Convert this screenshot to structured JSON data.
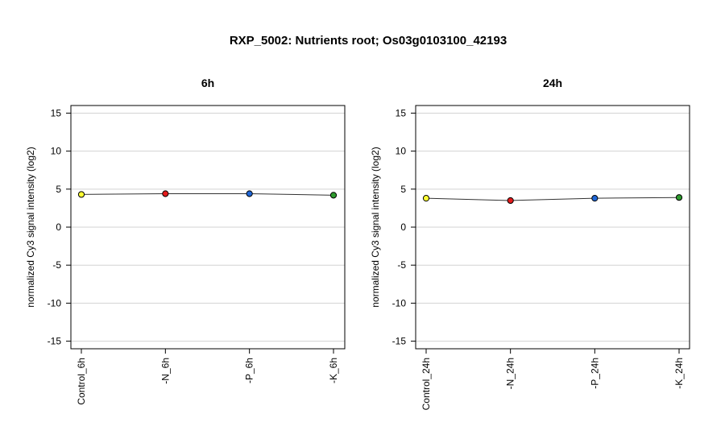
{
  "chart_data": {
    "title": "RXP_5002: Nutrients root; Os03g0103100_42193",
    "panels": [
      {
        "type": "line",
        "title": "6h",
        "ylabel": "normalized Cy3 signal intensity (log2)",
        "ylim": [
          -16,
          16
        ],
        "yticks": [
          15,
          10,
          5,
          0,
          -5,
          -10,
          -15
        ],
        "grid": true,
        "categories": [
          "Control_6h",
          "-N_6h",
          "-P_6h",
          "-K_6h"
        ],
        "values": [
          4.3,
          4.4,
          4.4,
          4.2
        ],
        "colors": [
          "#ffff33",
          "#e41a1c",
          "#1f66d6",
          "#2e9b2e"
        ]
      },
      {
        "type": "line",
        "title": "24h",
        "ylabel": "normalized Cy3 signal intensity (log2)",
        "ylim": [
          -16,
          16
        ],
        "yticks": [
          15,
          10,
          5,
          0,
          -5,
          -10,
          -15
        ],
        "grid": true,
        "categories": [
          "Control_24h",
          "-N_24h",
          "-P_24h",
          "-K_24h"
        ],
        "values": [
          3.8,
          3.5,
          3.8,
          3.9
        ],
        "colors": [
          "#ffff33",
          "#e41a1c",
          "#1f66d6",
          "#2e9b2e"
        ]
      }
    ]
  }
}
